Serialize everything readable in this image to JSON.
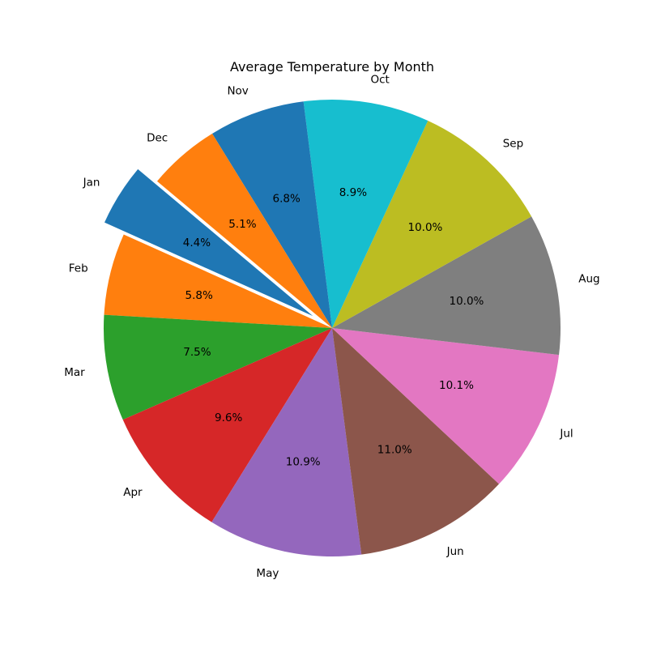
{
  "chart_data": {
    "type": "pie",
    "title": "Average Temperature by Month",
    "categories": [
      "Jan",
      "Feb",
      "Mar",
      "Apr",
      "May",
      "Jun",
      "Jul",
      "Aug",
      "Sep",
      "Oct",
      "Nov",
      "Dec"
    ],
    "values": [
      4.4,
      5.8,
      7.5,
      9.6,
      10.9,
      11.0,
      10.1,
      10.0,
      10.0,
      8.9,
      6.8,
      5.1
    ],
    "value_labels": [
      "4.4%",
      "5.8%",
      "7.5%",
      "9.6%",
      "10.9%",
      "11.0%",
      "10.1%",
      "10.0%",
      "10.0%",
      "8.9%",
      "6.8%",
      "5.1%"
    ],
    "colors": [
      "#1f77b4",
      "#ff7f0e",
      "#2ca02c",
      "#d62728",
      "#9467bd",
      "#8c564b",
      "#e377c2",
      "#7f7f7f",
      "#bcbd22",
      "#17becf",
      "#1f77b4",
      "#ff7f0e"
    ],
    "exploded": [
      "Jan"
    ],
    "direction": "counterclockwise"
  }
}
